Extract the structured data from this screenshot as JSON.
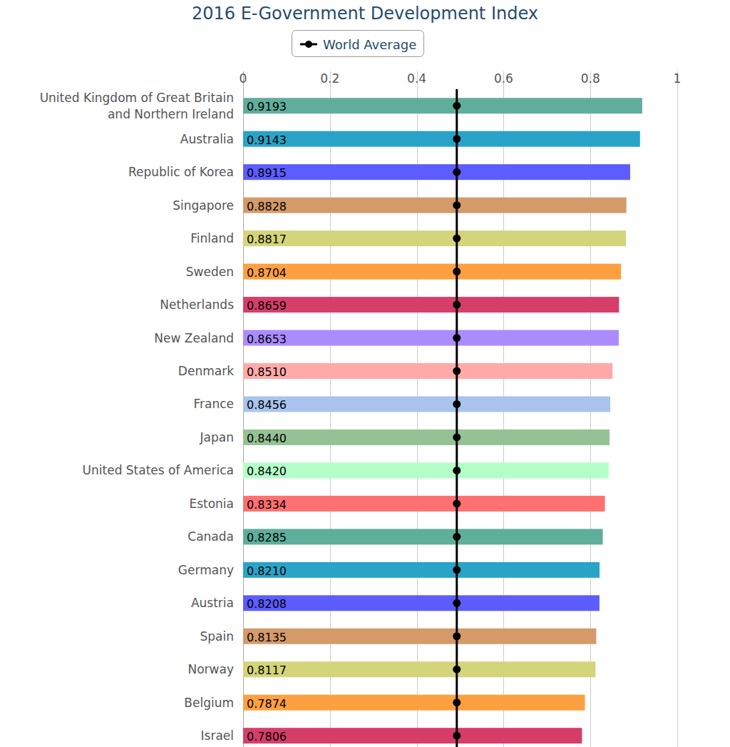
{
  "chart_data": {
    "type": "bar",
    "title": "2016 E-Government Development Index",
    "orientation": "horizontal",
    "data_labels": true,
    "grid": true,
    "legend": "top",
    "xlim": [
      0,
      1
    ],
    "xticks": [
      0,
      0.2,
      0.4,
      0.6,
      0.8,
      1
    ],
    "categories": [
      "United Kingdom of Great Britain and Northern Ireland",
      "Australia",
      "Republic of Korea",
      "Singapore",
      "Finland",
      "Sweden",
      "Netherlands",
      "New Zealand",
      "Denmark",
      "France",
      "Japan",
      "United States of America",
      "Estonia",
      "Canada",
      "Germany",
      "Austria",
      "Spain",
      "Norway",
      "Belgium",
      "Israel"
    ],
    "values": [
      0.9193,
      0.9143,
      0.8915,
      0.8828,
      0.8817,
      0.8704,
      0.8659,
      0.8653,
      0.851,
      0.8456,
      0.844,
      0.842,
      0.8334,
      0.8285,
      0.821,
      0.8208,
      0.8135,
      0.8117,
      0.7874,
      0.7806
    ],
    "value_labels": [
      "0.9193",
      "0.9143",
      "0.8915",
      "0.8828",
      "0.8817",
      "0.8704",
      "0.8659",
      "0.8653",
      "0.8510",
      "0.8456",
      "0.8440",
      "0.8420",
      "0.8334",
      "0.8285",
      "0.8210",
      "0.8208",
      "0.8135",
      "0.8117",
      "0.7874",
      "0.7806"
    ],
    "colors": [
      "#5fae9c",
      "#2aa3c9",
      "#5c5cff",
      "#d49a6a",
      "#d4d47a",
      "#ffa040",
      "#d63e6a",
      "#aa8cff",
      "#ffaaa8",
      "#a8c4ec",
      "#94c294",
      "#b3ffc8",
      "#ff7070",
      "#5fae9c",
      "#2aa3c9",
      "#5c5cff",
      "#d49a6a",
      "#d4d47a",
      "#ffa040",
      "#d63e6a"
    ],
    "series": [
      {
        "name": "World Average",
        "type": "line",
        "color": "#000000",
        "marker": "circle",
        "values": [
          0.4922,
          0.4922,
          0.4922,
          0.4922,
          0.4922,
          0.4922,
          0.4922,
          0.4922,
          0.4922,
          0.4922,
          0.4922,
          0.4922,
          0.4922,
          0.4922,
          0.4922,
          0.4922,
          0.4922,
          0.4922,
          0.4922,
          0.4922
        ]
      }
    ]
  }
}
